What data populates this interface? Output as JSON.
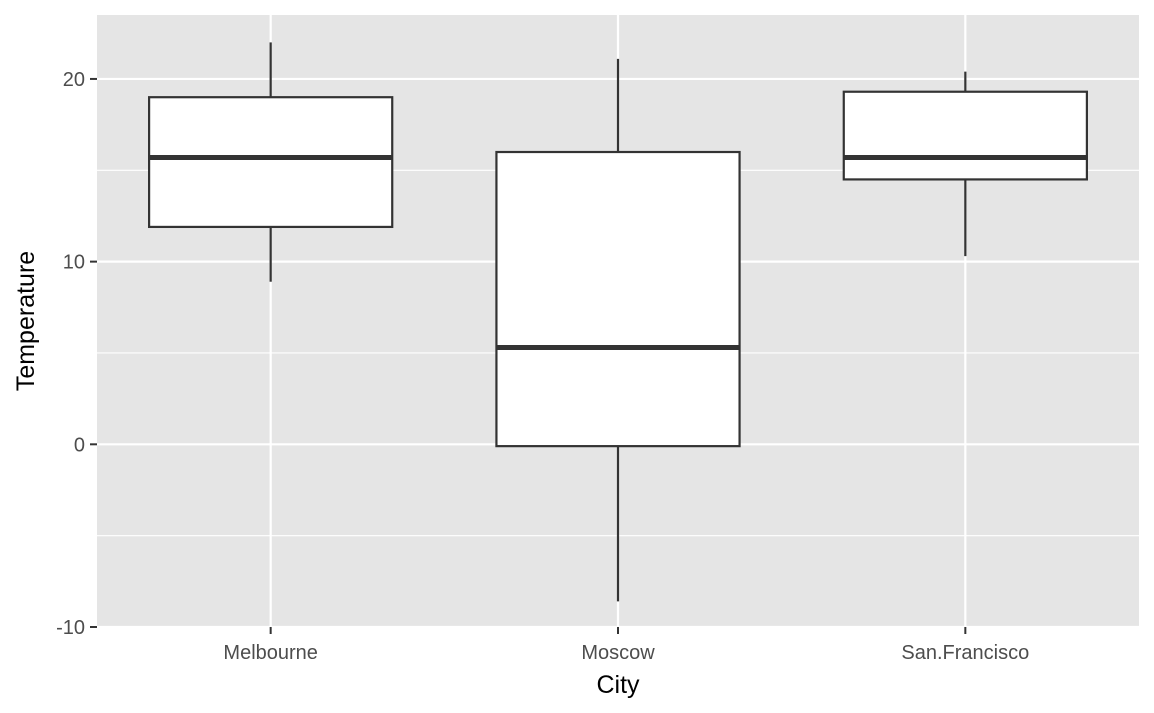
{
  "chart_data": {
    "type": "boxplot",
    "xlabel": "City",
    "ylabel": "Temperature",
    "categories": [
      "Melbourne",
      "Moscow",
      "San.Francisco"
    ],
    "ylim": [
      -10,
      23.5
    ],
    "yticks": [
      -10,
      0,
      10,
      20
    ],
    "ytick_labels": [
      "-10",
      "0",
      "10",
      "20"
    ],
    "boxes": [
      {
        "category": "Melbourne",
        "whisker_low": 8.9,
        "q1": 11.9,
        "median": 15.7,
        "q3": 19.0,
        "whisker_high": 22.0
      },
      {
        "category": "Moscow",
        "whisker_low": -8.6,
        "q1": -0.1,
        "median": 5.3,
        "q3": 16.0,
        "whisker_high": 21.1
      },
      {
        "category": "San.Francisco",
        "whisker_low": 10.3,
        "q1": 14.5,
        "median": 15.7,
        "q3": 19.3,
        "whisker_high": 20.4
      }
    ],
    "grid": true,
    "legend": "none"
  },
  "colors": {
    "panel_background": "#e5e5e5",
    "grid": "#ffffff",
    "box_fill": "#ffffff",
    "box_line": "#333333",
    "tick_text": "#4d4d4d",
    "tick_mark": "#333333",
    "title_text": "#000000"
  }
}
